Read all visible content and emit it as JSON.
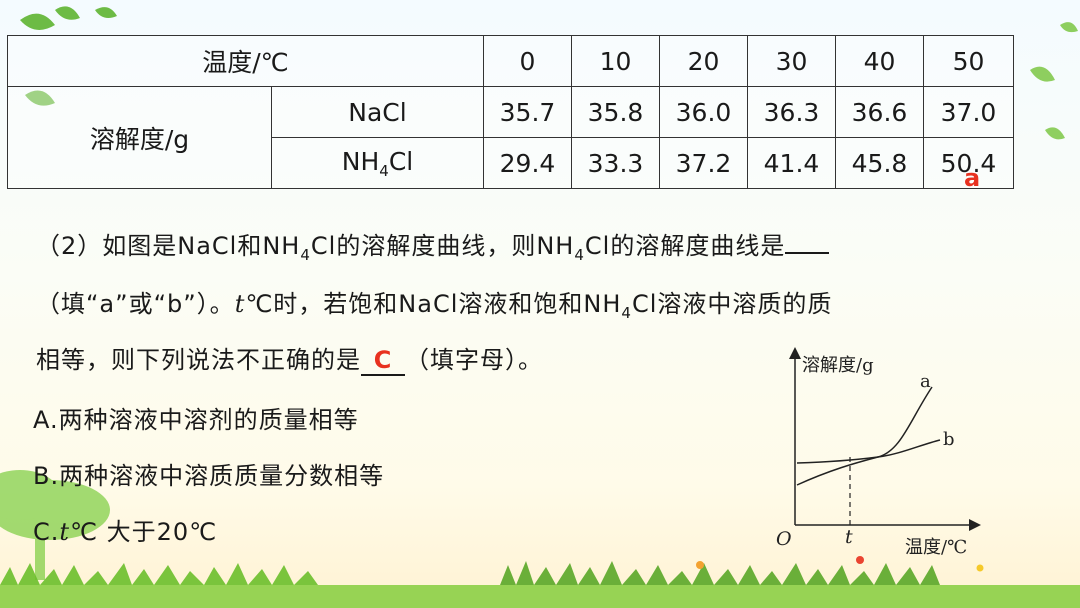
{
  "table": {
    "temp_header": "温度/℃",
    "temps": [
      "0",
      "10",
      "20",
      "30",
      "40",
      "50"
    ],
    "sol_label": "溶解度/g",
    "rows": [
      {
        "name": "NaCl",
        "values": [
          "35.7",
          "35.8",
          "36.0",
          "36.3",
          "36.6",
          "37.0"
        ]
      },
      {
        "name_main": "NH",
        "name_sub": "4",
        "name_tail": "Cl",
        "values": [
          "29.4",
          "33.3",
          "37.2",
          "41.4",
          "45.8",
          "50.4"
        ]
      }
    ],
    "red_mark": "a"
  },
  "question": {
    "line1_a": "（2）如图是NaCl和NH",
    "line1_sub": "4",
    "line1_b": "Cl的溶解度曲线，则NH",
    "line1_sub2": "4",
    "line1_c": "Cl的溶解度曲线是",
    "line2_a": "（填“a”或“b”）。",
    "line2_t": "t",
    "line2_b": "℃时，若饱和NaCl溶液和饱和NH",
    "line2_sub": "4",
    "line2_c": "Cl溶液中溶质的质",
    "line3_a": "相等，则下列说法不正确的是",
    "line3_answer": "C",
    "line3_b": "（填字母）。",
    "optionA": "A.两种溶液中溶剂的质量相等",
    "optionB": "B.两种溶液中溶质质量分数相等",
    "optionC_a": "C.",
    "optionC_t": "t",
    "optionC_b": "℃ 大于20℃"
  },
  "graph": {
    "ylabel": "溶解度/g",
    "xlabel": "温度/℃",
    "origin": "O",
    "t_label": "t",
    "curve_a": "a",
    "curve_b": "b"
  },
  "colors": {
    "answer": "#e8311f",
    "leaf": "#5fb531",
    "grass": "#6cbf2c"
  }
}
